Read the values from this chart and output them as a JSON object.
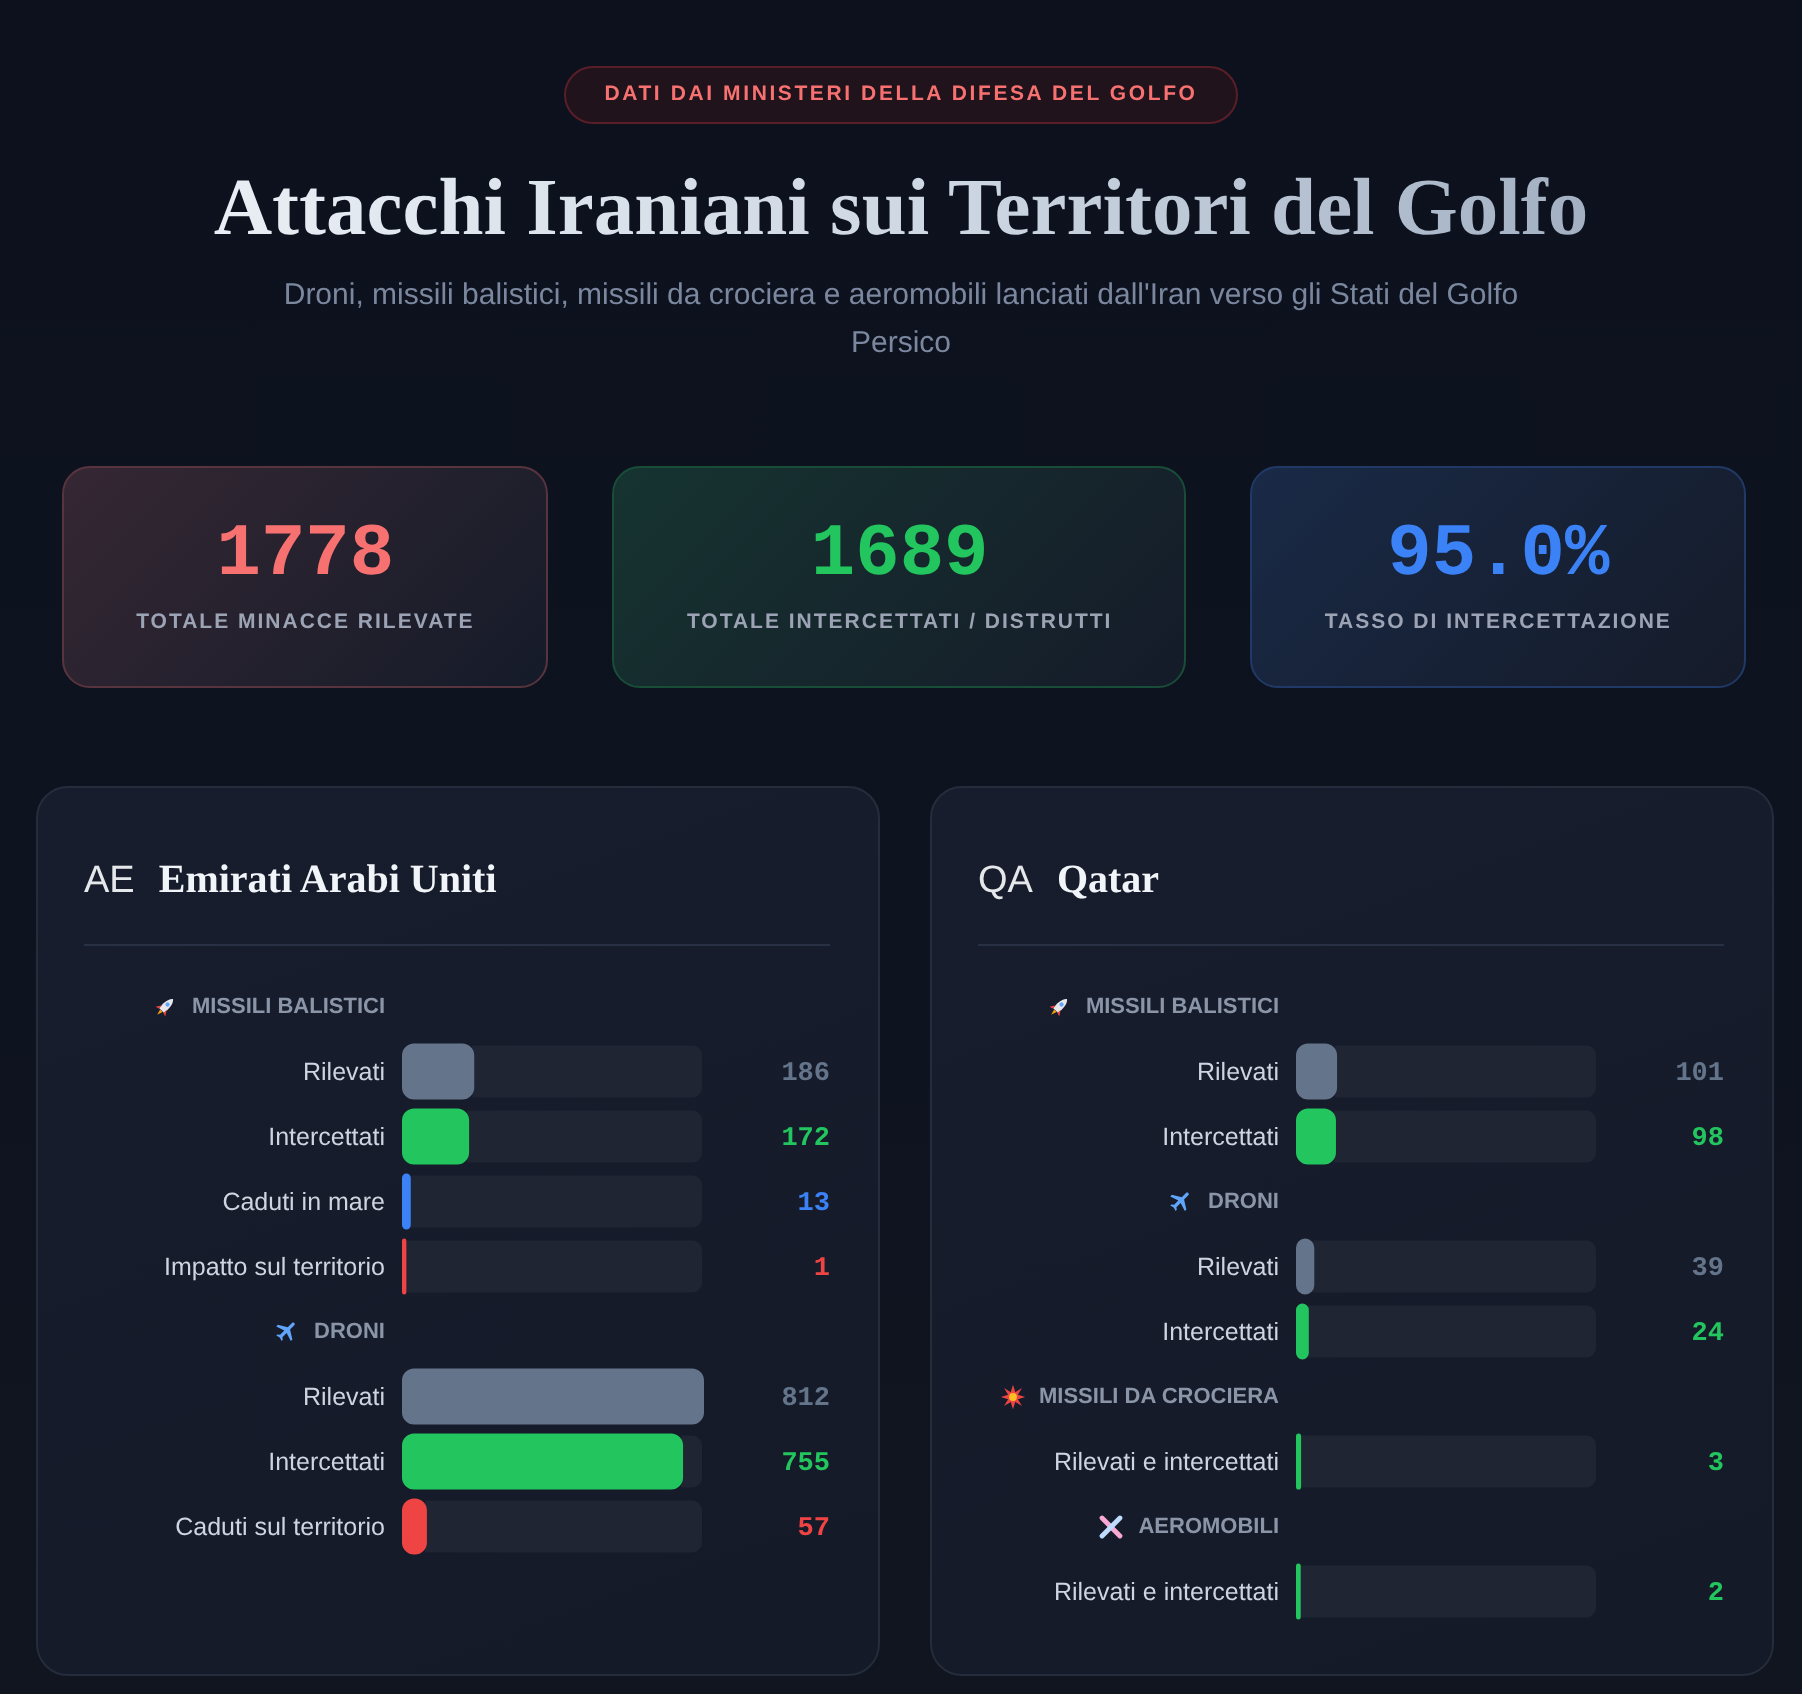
{
  "chart_data": [
    {
      "type": "other",
      "title": "Attacchi Iraniani sui Territori del Golfo",
      "subtitle": "Droni, missili balistici, missili da crociera e aeromobili lanciati dall'Iran verso gli Stati del Golfo Persico",
      "annotations": [
        "DATI DAI MINISTERI DELLA DIFESA DEL GOLFO",
        "1778",
        "TOTALE MINACCE RILEVATE",
        "1689",
        "TOTALE INTERCETTATI / DISTRUTTI",
        "95.0%",
        "TASSO DI INTERCETTAZIONE"
      ],
      "colors": [
        "#f87171",
        "#22c55e",
        "#3b82f6"
      ]
    },
    {
      "type": "bar",
      "orientation": "horizontal",
      "title": "Emirati Arabi Uniti",
      "annotations": [
        "AE"
      ],
      "categories": [
        "MISSILI BALISTICI",
        "Rilevati",
        "Intercettati",
        "Caduti in mare",
        "Impatto sul territorio",
        "DRONI",
        "Rilevati",
        "Intercettati",
        "Caduti sul territorio"
      ],
      "values": [
        null,
        186,
        172,
        13,
        1,
        null,
        812,
        755,
        57
      ],
      "colors": [
        null,
        "#64748b",
        "#22c55e",
        "#3b82f6",
        "#ef4444",
        null,
        "#64748b",
        "#22c55e",
        "#ef4444"
      ],
      "xlim": [
        0,
        812
      ],
      "tick_labels": "y",
      "data_labels": true
    },
    {
      "type": "bar",
      "orientation": "horizontal",
      "title": "Qatar",
      "annotations": [
        "QA"
      ],
      "categories": [
        "MISSILI BALISTICI",
        "Rilevati",
        "Intercettati",
        "DRONI",
        "Rilevati",
        "Intercettati",
        "MISSILI DA CROCIERA",
        "Rilevati e intercettati",
        "AEROMOBILI",
        "Rilevati e intercettati"
      ],
      "values": [
        null,
        101,
        98,
        null,
        39,
        24,
        null,
        3,
        null,
        2
      ],
      "colors": [
        null,
        "#64748b",
        "#22c55e",
        null,
        "#64748b",
        "#22c55e",
        null,
        "#22c55e",
        null,
        "#22c55e"
      ],
      "xlim": [
        0,
        812
      ],
      "tick_labels": "y",
      "data_labels": true
    }
  ]
}
